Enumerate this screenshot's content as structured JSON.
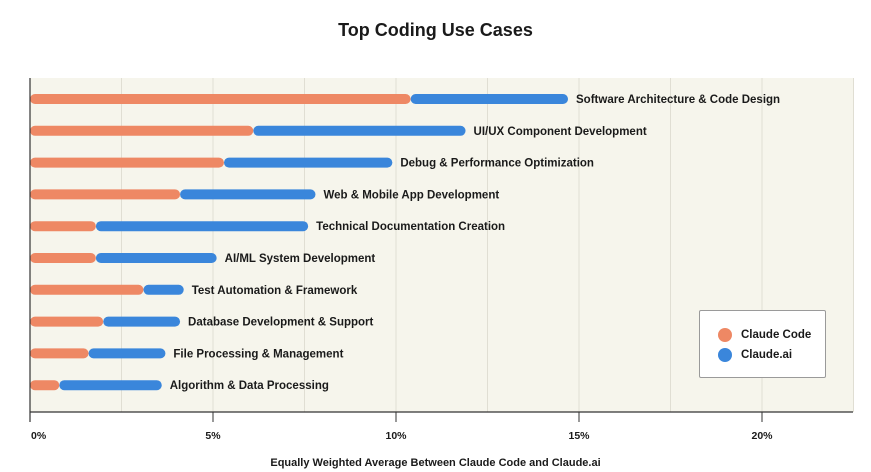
{
  "chart_data": {
    "type": "bar",
    "stacked": true,
    "orientation": "horizontal",
    "title": "Top Coding Use Cases",
    "xlabel": "Equally Weighted Average Between Claude Code and Claude.ai",
    "ylabel": "",
    "xlim": [
      0,
      22.5
    ],
    "x_ticks": [
      0,
      5,
      10,
      15,
      20
    ],
    "x_tick_labels": [
      "0%",
      "5%",
      "10%",
      "15%",
      "20%"
    ],
    "grid": true,
    "legend_position": "bottom-right",
    "categories": [
      "Software Architecture & Code Design",
      "UI/UX Component Development",
      "Debug & Performance Optimization",
      "Web & Mobile App Development",
      "Technical Documentation Creation",
      "AI/ML System Development",
      "Test Automation & Framework",
      "Database Development & Support",
      "File Processing & Management",
      "Algorithm & Data Processing"
    ],
    "series": [
      {
        "name": "Claude Code",
        "color": "#ee8864",
        "values": [
          10.4,
          6.1,
          5.3,
          4.1,
          1.8,
          1.8,
          3.1,
          2.0,
          1.6,
          0.8
        ]
      },
      {
        "name": "Claude.ai",
        "color": "#3a86db",
        "values": [
          4.3,
          5.8,
          4.6,
          3.7,
          5.8,
          3.3,
          1.1,
          2.1,
          2.1,
          2.8
        ]
      }
    ]
  },
  "legend": {
    "items": [
      {
        "label": "Claude Code",
        "color": "#ee8864"
      },
      {
        "label": "Claude.ai",
        "color": "#3a86db"
      }
    ]
  },
  "colors": {
    "plot_background": "#f6f5ec",
    "gridline": "#e0ded3",
    "axis": "#333333"
  }
}
